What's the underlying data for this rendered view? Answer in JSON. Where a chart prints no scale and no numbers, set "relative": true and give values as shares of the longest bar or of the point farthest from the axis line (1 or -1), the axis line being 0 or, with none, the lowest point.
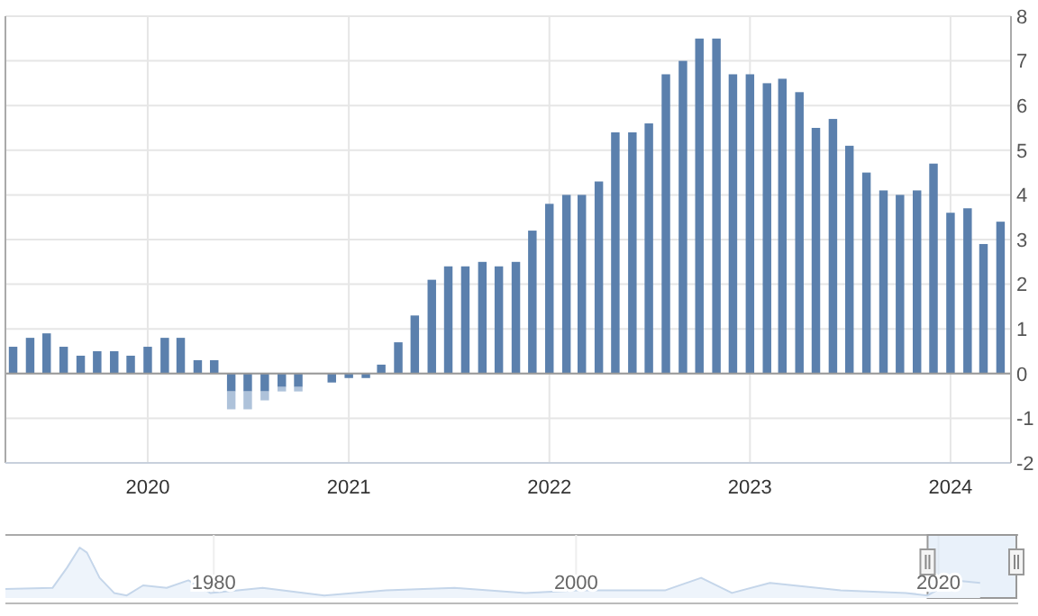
{
  "chart_data": [
    {
      "type": "bar",
      "stacked": true,
      "x": [
        "2019-05",
        "2019-06",
        "2019-07",
        "2019-08",
        "2019-09",
        "2019-10",
        "2019-11",
        "2019-12",
        "2020-01",
        "2020-02",
        "2020-03",
        "2020-04",
        "2020-05",
        "2020-06",
        "2020-07",
        "2020-08",
        "2020-09",
        "2020-10",
        "2020-11",
        "2020-12",
        "2021-01",
        "2021-02",
        "2021-03",
        "2021-04",
        "2021-05",
        "2021-06",
        "2021-07",
        "2021-08",
        "2021-09",
        "2021-10",
        "2021-11",
        "2021-12",
        "2022-01",
        "2022-02",
        "2022-03",
        "2022-04",
        "2022-05",
        "2022-06",
        "2022-07",
        "2022-08",
        "2022-09",
        "2022-10",
        "2022-11",
        "2022-12",
        "2023-01",
        "2023-02",
        "2023-03",
        "2023-04",
        "2023-05",
        "2023-06",
        "2023-07",
        "2023-08",
        "2023-09",
        "2023-10",
        "2023-11",
        "2023-12",
        "2024-01",
        "2024-02",
        "2024-03",
        "2024-04"
      ],
      "series": [
        {
          "color": "#5b80ad",
          "values": [
            0.6,
            0.8,
            0.9,
            0.6,
            0.4,
            0.5,
            0.5,
            0.4,
            0.6,
            0.8,
            0.8,
            0.3,
            0.3,
            -0.4,
            -0.4,
            -0.4,
            -0.3,
            -0.3,
            0,
            -0.2,
            -0.1,
            -0.1,
            0.2,
            0.7,
            1.3,
            2.1,
            2.4,
            2.4,
            2.5,
            2.4,
            2.5,
            3.2,
            3.8,
            4.0,
            4.0,
            4.3,
            5.4,
            5.4,
            5.6,
            6.7,
            7.0,
            7.5,
            7.5,
            6.7,
            6.7,
            6.5,
            6.6,
            6.3,
            5.5,
            5.7,
            5.1,
            4.5,
            4.1,
            4.0,
            4.1,
            4.7,
            3.6,
            3.7,
            2.9,
            3.4
          ]
        },
        {
          "color": "#aec2da",
          "values": [
            null,
            null,
            null,
            null,
            null,
            null,
            null,
            null,
            null,
            null,
            null,
            null,
            null,
            -0.4,
            -0.4,
            -0.2,
            -0.1,
            -0.1,
            null,
            null,
            null,
            null,
            null,
            null,
            null,
            null,
            null,
            null,
            null,
            null,
            null,
            null,
            null,
            null,
            null,
            null,
            null,
            null,
            null,
            null,
            null,
            null,
            null,
            null,
            null,
            null,
            null,
            null,
            null,
            null,
            null,
            null,
            null,
            null,
            null,
            null,
            null,
            null,
            null,
            null
          ]
        }
      ],
      "xlim": [
        "2019-04-17",
        "2024-04-20"
      ],
      "xticks": [
        {
          "value": "2020-01",
          "label": "2020"
        },
        {
          "value": "2021-01",
          "label": "2021"
        },
        {
          "value": "2022-01",
          "label": "2022"
        },
        {
          "value": "2023-01",
          "label": "2023"
        },
        {
          "value": "2024-01",
          "label": "2024"
        }
      ],
      "ylim": [
        -2,
        8
      ],
      "yticks": [
        -2,
        -1,
        0,
        1,
        2,
        3,
        4,
        5,
        6,
        7,
        8
      ],
      "grid": true
    },
    {
      "type": "area",
      "relative": true,
      "color": "#c5d6ea",
      "x": [
        1968.5,
        1971.1,
        1971.9,
        1972.6,
        1973.0,
        1973.7,
        1974.5,
        1975.2,
        1976.1,
        1977.4,
        1978.6,
        1979.8,
        1982.7,
        1986.1,
        1989.5,
        1993.3,
        1997.2,
        2000.1,
        2004.9,
        2006.9,
        2008.6,
        2010.7,
        2014.6,
        2018.2,
        2019.4,
        2020.9,
        2022.3
      ],
      "values": [
        0.18,
        0.2,
        0.6,
        1.0,
        0.9,
        0.4,
        0.1,
        0.05,
        0.25,
        0.2,
        0.35,
        0.1,
        0.2,
        0.05,
        0.15,
        0.2,
        0.1,
        0.15,
        0.15,
        0.4,
        0.1,
        0.3,
        0.15,
        0.1,
        0.05,
        0.35,
        0.3
      ],
      "xlim": [
        1968.5,
        2024.4
      ],
      "xticks": [
        1980,
        2000,
        2020
      ],
      "grid": "x",
      "bands": [
        {
          "axis": "x",
          "from": 2019.4,
          "to": 2024.3,
          "color": "#dbe8f7"
        }
      ]
    }
  ]
}
